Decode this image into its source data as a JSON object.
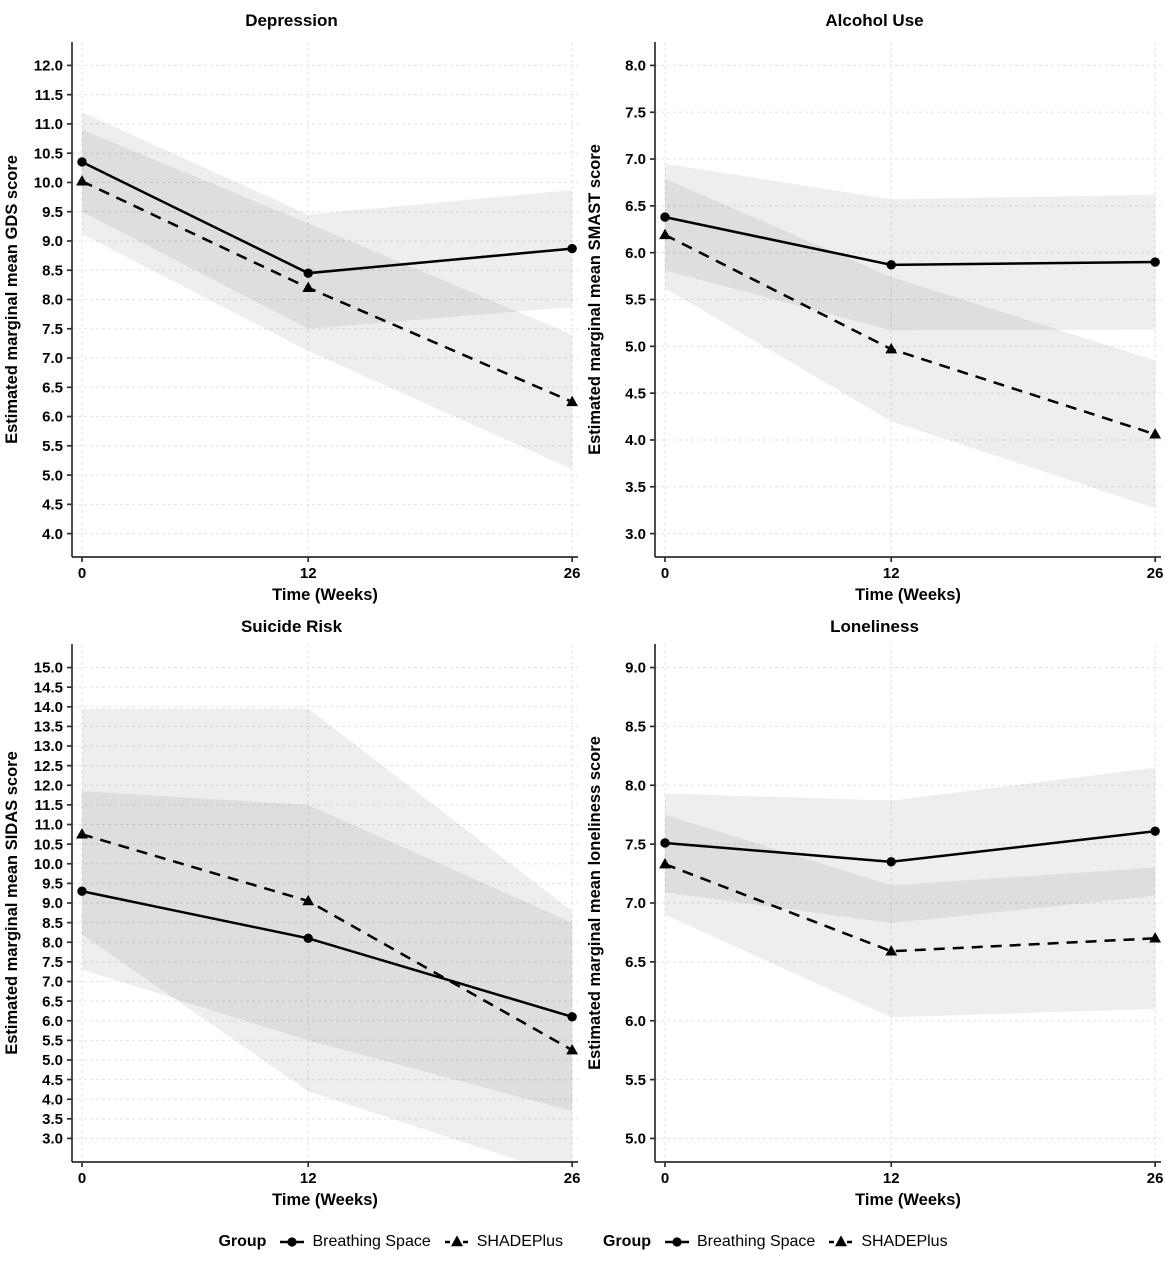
{
  "figure": {
    "background": "#ffffff",
    "series_color": "#000000",
    "axis_color": "#2f2f2f",
    "grid_color": "#e3e3e3",
    "band_color": "#000000",
    "band_opacity": 0.065
  },
  "legend": {
    "groups": [
      {
        "title": "Group",
        "items": [
          {
            "label": "Breathing Space",
            "marker": "circle",
            "line": "solid"
          },
          {
            "label": "SHADEPlus",
            "marker": "triangle",
            "line": "dashed"
          }
        ]
      },
      {
        "title": "Group",
        "items": [
          {
            "label": "Breathing Space",
            "marker": "circle",
            "line": "solid"
          },
          {
            "label": "SHADEPlus",
            "marker": "triangle",
            "line": "dashed"
          }
        ]
      }
    ]
  },
  "chart_data": [
    {
      "type": "line",
      "panel": "depression",
      "title": "Depression",
      "xlabel": "Time (Weeks)",
      "ylabel": "Estimated marginal mean GDS score",
      "x": [
        0,
        12,
        26
      ],
      "xtick_labels": [
        "0",
        "12",
        "26"
      ],
      "xlim": [
        -0.53,
        26.31
      ],
      "ylim": [
        3.6,
        12.4
      ],
      "ytick_labels": [
        "4.0",
        "4.5",
        "5.0",
        "5.5",
        "6.0",
        "6.5",
        "7.0",
        "7.5",
        "8.0",
        "8.5",
        "9.0",
        "9.5",
        "10.0",
        "10.5",
        "11.0",
        "11.5",
        "12.0"
      ],
      "grid": true,
      "legend_position": "bottom",
      "series": [
        {
          "name": "Breathing Space",
          "line": "solid",
          "marker": "circle",
          "values": [
            10.35,
            8.45,
            8.87
          ],
          "ci_low": [
            9.5,
            7.5,
            7.87
          ],
          "ci_high": [
            11.2,
            9.45,
            9.87
          ]
        },
        {
          "name": "SHADEPlus",
          "line": "dashed",
          "marker": "triangle",
          "values": [
            10.02,
            8.2,
            6.25
          ],
          "ci_low": [
            9.12,
            7.12,
            5.1
          ],
          "ci_high": [
            10.9,
            9.3,
            7.4
          ]
        }
      ]
    },
    {
      "type": "line",
      "panel": "alcohol-use",
      "title": "Alcohol Use",
      "xlabel": "Time (Weeks)",
      "ylabel": "Estimated marginal mean SMAST score",
      "x": [
        0,
        12,
        26
      ],
      "xtick_labels": [
        "0",
        "12",
        "26"
      ],
      "xlim": [
        -0.53,
        26.31
      ],
      "ylim": [
        2.75,
        8.25
      ],
      "ytick_labels": [
        "3.0",
        "3.5",
        "4.0",
        "4.5",
        "5.0",
        "5.5",
        "6.0",
        "6.5",
        "7.0",
        "7.5",
        "8.0"
      ],
      "grid": true,
      "legend_position": "bottom",
      "series": [
        {
          "name": "Breathing Space",
          "line": "solid",
          "marker": "circle",
          "values": [
            6.38,
            5.87,
            5.9
          ],
          "ci_low": [
            5.81,
            5.17,
            5.18
          ],
          "ci_high": [
            6.95,
            6.57,
            6.62
          ]
        },
        {
          "name": "SHADEPlus",
          "line": "dashed",
          "marker": "triangle",
          "values": [
            6.19,
            4.97,
            4.06
          ],
          "ci_low": [
            5.62,
            4.2,
            3.27
          ],
          "ci_high": [
            6.79,
            5.74,
            4.85
          ]
        }
      ]
    },
    {
      "type": "line",
      "panel": "suicide-risk",
      "title": "Suicide Risk",
      "xlabel": "Time (Weeks)",
      "ylabel": "Estimated marginal mean SIDAS score",
      "x": [
        0,
        12,
        26
      ],
      "xtick_labels": [
        "0",
        "12",
        "26"
      ],
      "xlim": [
        -0.53,
        26.31
      ],
      "ylim": [
        2.4,
        15.6
      ],
      "ytick_labels": [
        "3.0",
        "3.5",
        "4.0",
        "4.5",
        "5.0",
        "5.5",
        "6.0",
        "6.5",
        "7.0",
        "7.5",
        "8.0",
        "8.5",
        "9.0",
        "9.5",
        "10.0",
        "10.5",
        "11.0",
        "11.5",
        "12.0",
        "12.5",
        "13.0",
        "13.5",
        "14.0",
        "14.5",
        "15.0"
      ],
      "grid": true,
      "legend_position": "bottom",
      "series": [
        {
          "name": "Breathing Space",
          "line": "solid",
          "marker": "circle",
          "values": [
            9.3,
            8.1,
            6.1
          ],
          "ci_low": [
            7.3,
            5.5,
            3.7
          ],
          "ci_high": [
            11.85,
            11.5,
            8.5
          ]
        },
        {
          "name": "SHADEPlus",
          "line": "dashed",
          "marker": "triangle",
          "values": [
            10.75,
            9.05,
            5.25
          ],
          "ci_low": [
            8.2,
            4.2,
            2.0
          ],
          "ci_high": [
            13.95,
            13.95,
            8.8
          ]
        }
      ]
    },
    {
      "type": "line",
      "panel": "loneliness",
      "title": "Loneliness",
      "xlabel": "Time (Weeks)",
      "ylabel": "Estimated marginal mean loneliness score",
      "x": [
        0,
        12,
        26
      ],
      "xtick_labels": [
        "0",
        "12",
        "26"
      ],
      "xlim": [
        -0.53,
        26.31
      ],
      "ylim": [
        4.8,
        9.2
      ],
      "ytick_labels": [
        "5.0",
        "5.5",
        "6.0",
        "6.5",
        "7.0",
        "7.5",
        "8.0",
        "8.5",
        "9.0"
      ],
      "grid": true,
      "legend_position": "bottom",
      "series": [
        {
          "name": "Breathing Space",
          "line": "solid",
          "marker": "circle",
          "values": [
            7.51,
            7.35,
            7.61
          ],
          "ci_low": [
            7.09,
            6.83,
            7.06
          ],
          "ci_high": [
            7.93,
            7.87,
            8.15
          ]
        },
        {
          "name": "SHADEPlus",
          "line": "dashed",
          "marker": "triangle",
          "values": [
            7.33,
            6.59,
            6.7
          ],
          "ci_low": [
            6.9,
            6.03,
            6.1
          ],
          "ci_high": [
            7.75,
            7.15,
            7.3
          ]
        }
      ]
    }
  ]
}
